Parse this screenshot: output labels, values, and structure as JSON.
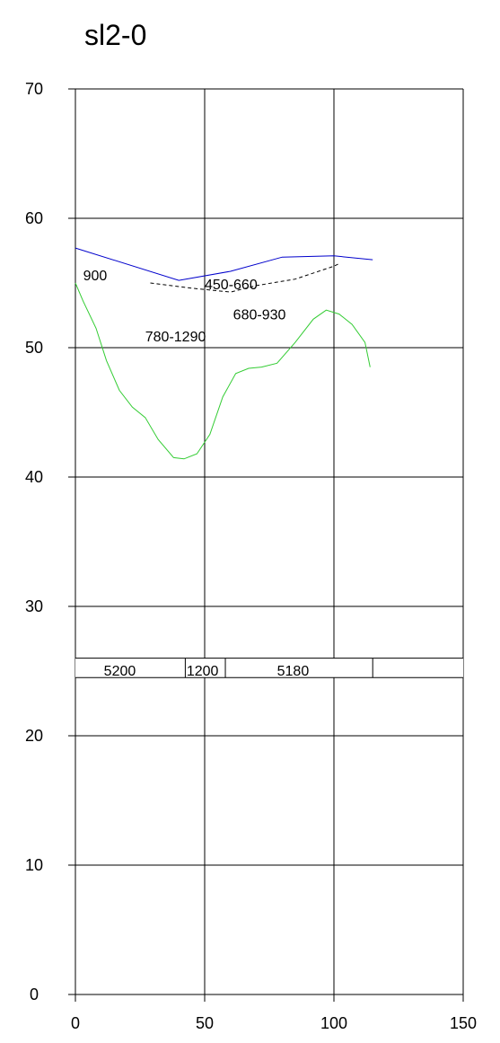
{
  "chart_data": {
    "type": "line",
    "title": "sl2-0",
    "xlabel": "",
    "ylabel": "",
    "xlim": [
      0,
      150
    ],
    "ylim": [
      0,
      70
    ],
    "x_ticks": [
      0,
      50,
      100,
      150
    ],
    "y_ticks": [
      0,
      10,
      20,
      30,
      40,
      50,
      60,
      70
    ],
    "grid": true,
    "series": [
      {
        "color": "#0000cc",
        "dash": "",
        "points": [
          [
            0,
            57.7
          ],
          [
            40,
            55.2
          ],
          [
            60,
            55.9
          ],
          [
            80,
            57.0
          ],
          [
            100,
            57.1
          ],
          [
            115,
            56.8
          ]
        ]
      },
      {
        "color": "#000000",
        "dash": "4,3",
        "points": [
          [
            29,
            55.0
          ],
          [
            45,
            54.6
          ],
          [
            60,
            54.3
          ],
          [
            70,
            54.8
          ],
          [
            85,
            55.3
          ],
          [
            100,
            56.3
          ],
          [
            102,
            56.5
          ]
        ]
      },
      {
        "color": "#33cc33",
        "dash": "",
        "points": [
          [
            0,
            55.0
          ],
          [
            3,
            53.6
          ],
          [
            8,
            51.5
          ],
          [
            12,
            49.0
          ],
          [
            17,
            46.7
          ],
          [
            22,
            45.4
          ],
          [
            27,
            44.6
          ],
          [
            32,
            42.9
          ],
          [
            38,
            41.5
          ],
          [
            42,
            41.4
          ],
          [
            47,
            41.8
          ],
          [
            52,
            43.3
          ],
          [
            57,
            46.2
          ],
          [
            62,
            48.0
          ],
          [
            67,
            48.4
          ],
          [
            72,
            48.5
          ],
          [
            78,
            48.8
          ],
          [
            85,
            50.4
          ],
          [
            92,
            52.2
          ],
          [
            97,
            52.9
          ],
          [
            102,
            52.6
          ],
          [
            107,
            51.8
          ],
          [
            112,
            50.4
          ],
          [
            114,
            48.5
          ]
        ]
      }
    ],
    "annotations": [
      {
        "text": "900",
        "x": 3,
        "y": 55.2
      },
      {
        "text": "450-660",
        "x": 50,
        "y": 54.5
      },
      {
        "text": "680-930",
        "x": 61,
        "y": 52.2
      },
      {
        "text": "780-1290",
        "x": 27,
        "y": 50.5
      }
    ],
    "band": {
      "y_top": 26.0,
      "y_bottom": 24.5,
      "x_start": 0,
      "x_end": 150,
      "dividers": [
        42.5,
        58,
        115
      ],
      "segments": [
        {
          "text": "5200",
          "x": 11
        },
        {
          "text": "1200",
          "x": 43
        },
        {
          "text": "5180",
          "x": 78
        }
      ]
    }
  }
}
